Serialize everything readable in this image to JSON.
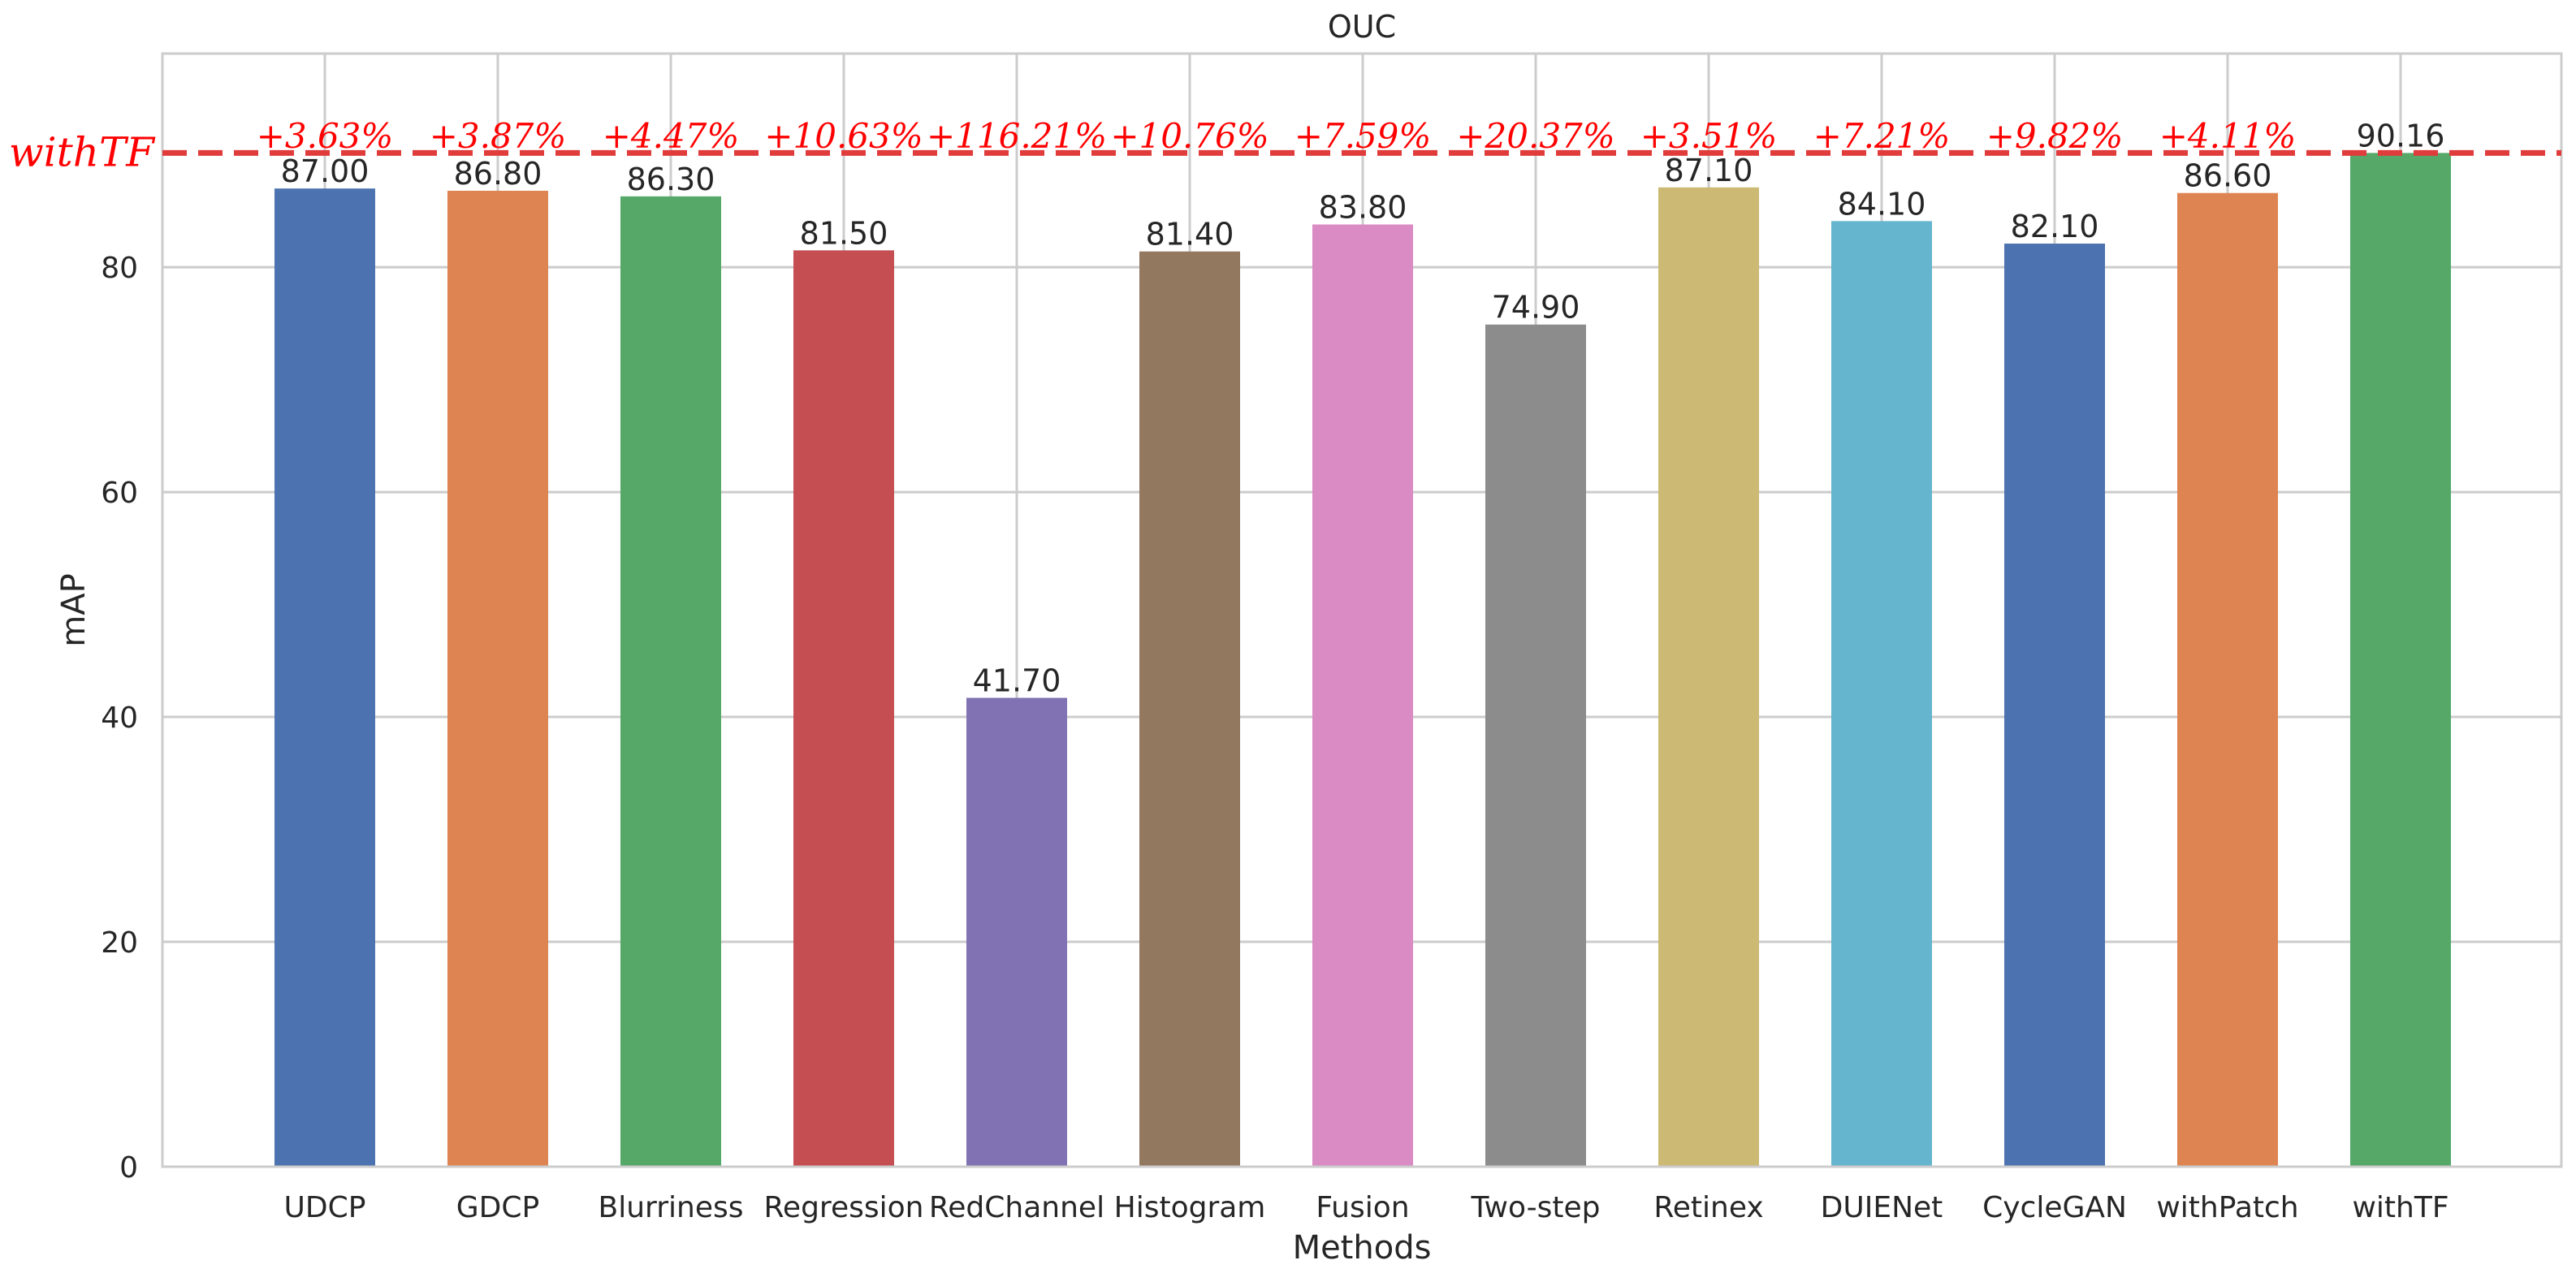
{
  "chart_data": {
    "type": "bar",
    "title": "OUC",
    "xlabel": "Methods",
    "ylabel": "mAP",
    "ylim": [
      0,
      99
    ],
    "yticks": [
      0,
      20,
      40,
      60,
      80
    ],
    "grid": true,
    "categories": [
      "UDCP",
      "GDCP",
      "Blurriness",
      "Regression",
      "RedChannel",
      "Histogram",
      "Fusion",
      "Two-step",
      "Retinex",
      "DUIENet",
      "CycleGAN",
      "withPatch",
      "withTF"
    ],
    "values": [
      87.0,
      86.8,
      86.3,
      81.5,
      41.7,
      81.4,
      83.8,
      74.9,
      87.1,
      84.1,
      82.1,
      86.6,
      90.16
    ],
    "value_labels": [
      "87.00",
      "86.80",
      "86.30",
      "81.50",
      "41.70",
      "81.40",
      "83.80",
      "74.90",
      "87.10",
      "84.10",
      "82.10",
      "86.60",
      "90.16"
    ],
    "bar_colors": [
      "#4c72b0",
      "#dd8452",
      "#55a868",
      "#c44e52",
      "#8172b3",
      "#937860",
      "#da8bc3",
      "#8c8c8c",
      "#ccb974",
      "#64b5cd",
      "#4c72b0",
      "#dd8452",
      "#55a868"
    ],
    "improvements": [
      "+3.63%",
      "+3.87%",
      "+4.47%",
      "+10.63%",
      "+116.21%",
      "+10.76%",
      "+7.59%",
      "+20.37%",
      "+3.51%",
      "+7.21%",
      "+9.82%",
      "+4.11%"
    ],
    "reference_line": {
      "label": "withTF",
      "value": 90.16,
      "color": "#e03c3c",
      "style": "dashed"
    },
    "improvement_color": "#ff0000"
  }
}
